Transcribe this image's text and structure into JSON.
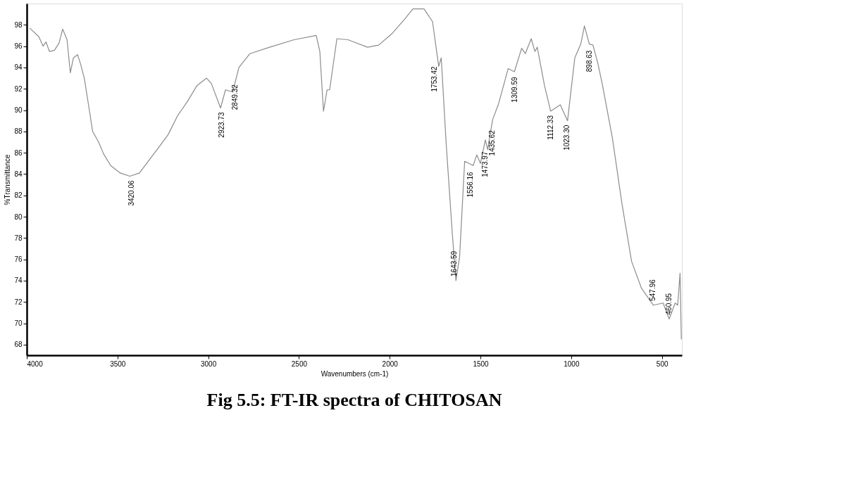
{
  "chart_data": {
    "type": "line",
    "title": "Fig 5.5: FT-IR spectra of CHITOSAN",
    "xlabel": "Wavenumbers (cm-1)",
    "ylabel": "%Transmittance",
    "xlim": [
      4000,
      390
    ],
    "ylim": [
      67,
      100
    ],
    "xticks": [
      4000,
      3500,
      3000,
      2500,
      2000,
      1500,
      1000,
      500
    ],
    "yticks": [
      68,
      70,
      72,
      74,
      76,
      78,
      80,
      82,
      84,
      86,
      88,
      90,
      92,
      94,
      96,
      98
    ],
    "grid": false,
    "marker": "none",
    "line_style": "solid",
    "series": [
      {
        "color": "#8c8c8c",
        "x": [
          3984,
          3934,
          3910,
          3894,
          3875,
          3848,
          3822,
          3802,
          3778,
          3760,
          3743,
          3720,
          3703,
          3683,
          3657,
          3637,
          3604,
          3577,
          3538,
          3485,
          3432,
          3379,
          3326,
          3273,
          3221,
          3168,
          3115,
          3062,
          3009,
          2983,
          2932,
          2905,
          2865,
          2831,
          2770,
          2662,
          2527,
          2405,
          2385,
          2365,
          2345,
          2331,
          2291,
          2230,
          2122,
          2061,
          1986,
          1919,
          1872,
          1811,
          1764,
          1730,
          1716,
          1689,
          1655,
          1635,
          1615,
          1587,
          1540,
          1520,
          1500,
          1473,
          1460,
          1433,
          1400,
          1347,
          1313,
          1273,
          1253,
          1220,
          1200,
          1187,
          1147,
          1113,
          1060,
          1020,
          980,
          947,
          927,
          900,
          880,
          853,
          827,
          773,
          720,
          667,
          613,
          547,
          493,
          460,
          427,
          413,
          400,
          393
        ],
        "values": [
          97.7,
          96.9,
          96.0,
          96.4,
          95.5,
          95.6,
          96.3,
          97.6,
          96.6,
          93.5,
          94.9,
          95.2,
          94.3,
          93.0,
          90.2,
          88.0,
          87.0,
          85.9,
          84.8,
          84.1,
          83.8,
          84.1,
          85.3,
          86.5,
          87.7,
          89.5,
          90.8,
          92.3,
          93.0,
          92.5,
          90.2,
          91.9,
          91.7,
          94.0,
          95.3,
          95.9,
          96.6,
          97.0,
          95.5,
          89.9,
          91.9,
          91.9,
          96.7,
          96.6,
          95.9,
          96.1,
          97.2,
          98.5,
          99.5,
          99.5,
          98.3,
          94.1,
          94.9,
          86.9,
          78.4,
          74.0,
          76.2,
          85.2,
          84.8,
          85.8,
          85.0,
          87.2,
          86.3,
          89.1,
          90.6,
          93.9,
          93.6,
          95.8,
          95.3,
          96.7,
          95.5,
          95.9,
          92.3,
          89.9,
          90.5,
          89.0,
          94.9,
          96.2,
          97.9,
          96.2,
          96.1,
          94.4,
          92.3,
          87.4,
          81.2,
          75.8,
          73.3,
          71.7,
          71.9,
          70.4,
          71.9,
          71.7,
          74.7,
          68.5
        ]
      }
    ],
    "annotations": [
      {
        "text": "3420.06",
        "x": 3420.06,
        "y": 83.8
      },
      {
        "text": "2923.73",
        "x": 2923.73,
        "y": 90.2
      },
      {
        "text": "2849.32",
        "x": 2849.32,
        "y": 92.8
      },
      {
        "text": "1753.42",
        "x": 1753.42,
        "y": 94.5
      },
      {
        "text": "1643.59",
        "x": 1643.59,
        "y": 74.0
      },
      {
        "text": "1556.16",
        "x": 1556.16,
        "y": 84.6
      },
      {
        "text": "1473.97",
        "x": 1473.97,
        "y": 86.5
      },
      {
        "text": "1435.62",
        "x": 1435.62,
        "y": 88.5
      },
      {
        "text": "1309.59",
        "x": 1309.59,
        "y": 93.5
      },
      {
        "text": "1112.33",
        "x": 1112.33,
        "y": 89.9
      },
      {
        "text": "1023.30",
        "x": 1023.3,
        "y": 89.0
      },
      {
        "text": "898.63",
        "x": 898.63,
        "y": 96.0
      },
      {
        "text": "547.96",
        "x": 547.96,
        "y": 71.7
      },
      {
        "text": "460.95",
        "x": 460.95,
        "y": 70.4
      }
    ]
  }
}
